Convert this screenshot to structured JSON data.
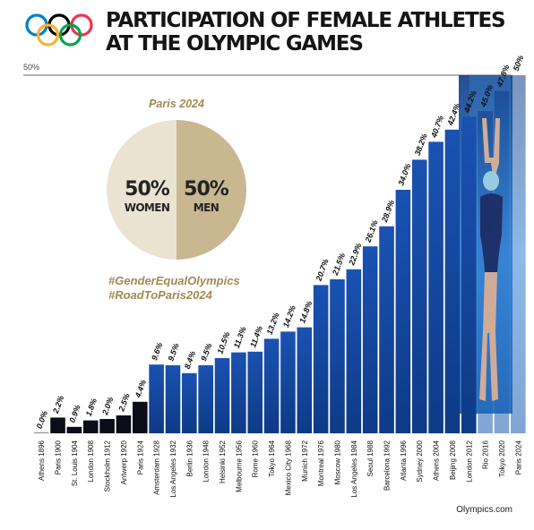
{
  "header": {
    "title_line1": "PARTICIPATION OF FEMALE ATHLETES",
    "title_line2": "AT THE OLYMPIC GAMES"
  },
  "colors": {
    "ring_blue": "#0081C8",
    "ring_yellow": "#FCB131",
    "ring_black": "#000000",
    "ring_green": "#00A651",
    "ring_red": "#EE334E",
    "pie_women": "#ebe3d2",
    "pie_men": "#c9b792",
    "hashtag_gold": "#a08a52",
    "bar_dark": "#0d0d1a",
    "bar_blue": "#1245a0",
    "bar_blue_light": "#2f7fd4"
  },
  "icons": [
    "olympic-rings-logo",
    "swimmer-photo"
  ],
  "inset": {
    "heading": "Paris 2024",
    "women_pct": "50%",
    "women_label": "WOMEN",
    "men_pct": "50%",
    "men_label": "MEN",
    "hashtag1": "#GenderEqualOlympics",
    "hashtag2": "#RoadToParis2024"
  },
  "footer": {
    "source": "Olympics.com"
  },
  "chart_data": {
    "type": "bar",
    "title": "PARTICIPATION OF FEMALE ATHLETES AT THE OLYMPIC GAMES",
    "ylim": [
      0,
      50
    ],
    "ytick_label": "50%",
    "categories": [
      "Athens 1896",
      "Paris 1900",
      "St. Louis 1904",
      "London 1908",
      "Stockholm 1912",
      "Antwerp 1920",
      "Paris 1924",
      "Amsterdam 1928",
      "Los Angeles 1932",
      "Berlin 1936",
      "London 1948",
      "Helsinki 1952",
      "Melbourne 1956",
      "Rome 1960",
      "Tokyo 1964",
      "Mexico City 1968",
      "Munich 1972",
      "Montreal 1976",
      "Moscow 1980",
      "Los Angeles 1984",
      "Seoul 1988",
      "Barcelona 1992",
      "Atlanta 1996",
      "Sydney 2000",
      "Athens 2004",
      "Beijing 2008",
      "London 2012",
      "Rio 2016",
      "Tokyo 2020",
      "Paris 2024"
    ],
    "values": [
      0.0,
      2.2,
      0.9,
      1.8,
      2.0,
      2.5,
      4.4,
      9.6,
      9.5,
      8.4,
      9.5,
      10.5,
      11.3,
      11.4,
      13.2,
      14.2,
      14.8,
      20.7,
      21.5,
      22.9,
      26.1,
      28.9,
      34.0,
      38.2,
      40.7,
      42.4,
      44.2,
      45.0,
      47.8,
      50
    ],
    "labels": [
      "0.0%",
      "2.2%",
      "0.9%",
      "1.8%",
      "2.0%",
      "2.5%",
      "4.4%",
      "9.6%",
      "9.5%",
      "8.4%",
      "9.5%",
      "10.5%",
      "11.3%",
      "11.4%",
      "13.2%",
      "14.2%",
      "14.8%",
      "20.7%",
      "21.5%",
      "22.9%",
      "26.1%",
      "28.9%",
      "34.0%",
      "38.2%",
      "40.7%",
      "42.4%",
      "44.2%",
      "45.0%",
      "47.8%",
      "50%"
    ],
    "grid": false,
    "legend": "none"
  }
}
